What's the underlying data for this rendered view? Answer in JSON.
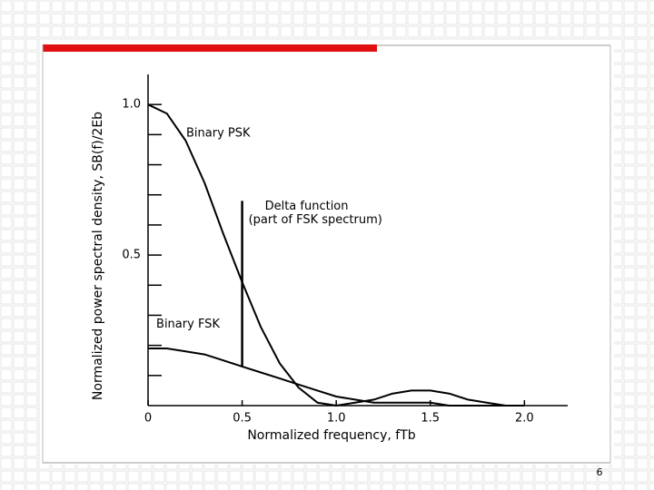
{
  "chart_data": {
    "type": "line",
    "xlabel": "Normalized frequency, fTb",
    "ylabel": "Normalized power spectral density, SB(f)/2Eb",
    "x": [
      0,
      0.1,
      0.2,
      0.3,
      0.4,
      0.5,
      0.6,
      0.7,
      0.8,
      0.9,
      1.0,
      1.1,
      1.2,
      1.3,
      1.4,
      1.5,
      1.6,
      1.7,
      1.8,
      1.9,
      2.0
    ],
    "series": [
      {
        "name": "Binary PSK",
        "color": "#000000",
        "values": [
          1.0,
          0.97,
          0.88,
          0.74,
          0.57,
          0.41,
          0.26,
          0.14,
          0.06,
          0.01,
          0,
          0.01,
          0.02,
          0.04,
          0.05,
          0.05,
          0.04,
          0.02,
          0.01,
          0,
          0
        ]
      },
      {
        "name": "Binary FSK",
        "color": "#000000",
        "values": [
          0.19,
          0.19,
          0.18,
          0.17,
          0.15,
          0.13,
          0.11,
          0.09,
          0.07,
          0.05,
          0.03,
          0.02,
          0.01,
          0.01,
          0.01,
          0.01,
          0,
          0,
          0,
          0,
          0
        ]
      }
    ],
    "delta": {
      "label": "Delta function",
      "sublabel": "(part of FSK spectrum)",
      "x": 0.5,
      "from": 0.13,
      "to": 0.68
    },
    "xlim": [
      0,
      2.23
    ],
    "ylim": [
      0,
      1.1
    ],
    "xticks": [
      0,
      0.5,
      {
        "value": 1,
        "label": "1.0"
      },
      1.5,
      {
        "value": 2,
        "label": "2.0"
      }
    ],
    "yticks": [
      0.5,
      {
        "value": 1,
        "label": "1.0"
      }
    ],
    "yminorticks": [
      0.1,
      0.2,
      0.3,
      0.4,
      0.6,
      0.7,
      0.8,
      0.9
    ]
  },
  "page_number": "6"
}
